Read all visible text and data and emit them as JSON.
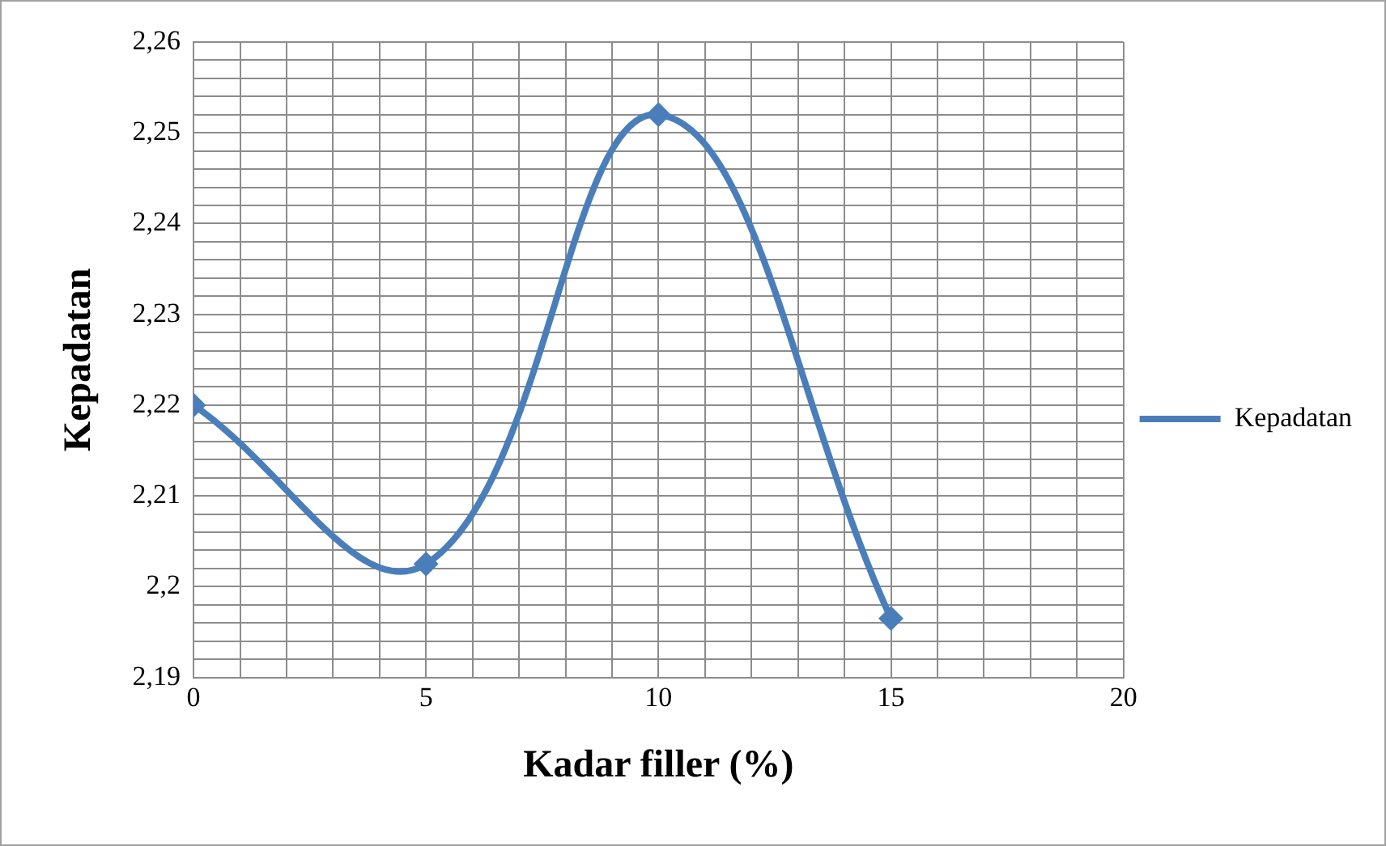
{
  "chart_data": {
    "type": "line",
    "xlabel": "Kadar filler (%)",
    "ylabel": "Kepadatan",
    "x": [
      0,
      5,
      10,
      15
    ],
    "series": [
      {
        "name": "Kepadatan",
        "color": "#4a7ebb",
        "values": [
          2.22,
          2.2025,
          2.252,
          2.1965
        ]
      }
    ],
    "xlim": [
      0,
      20
    ],
    "xticks": [
      0,
      {
        "value": 1,
        "label": null
      },
      {
        "value": 2,
        "label": null
      },
      {
        "value": 3,
        "label": null
      },
      {
        "value": 4,
        "label": null
      },
      5,
      {
        "value": 6,
        "label": null
      },
      {
        "value": 7,
        "label": null
      },
      {
        "value": 8,
        "label": null
      },
      {
        "value": 9,
        "label": null
      },
      10,
      {
        "value": 11,
        "label": null
      },
      {
        "value": 12,
        "label": null
      },
      {
        "value": 13,
        "label": null
      },
      {
        "value": 14,
        "label": null
      },
      15,
      {
        "value": 16,
        "label": null
      },
      {
        "value": 17,
        "label": null
      },
      {
        "value": 18,
        "label": null
      },
      {
        "value": 19,
        "label": null
      },
      20
    ],
    "ylim": [
      2.19,
      2.26
    ],
    "yticks": [
      {
        "value": 2.19,
        "label": "2,19"
      },
      {
        "value": 2.192,
        "label": null
      },
      {
        "value": 2.194,
        "label": null
      },
      {
        "value": 2.196,
        "label": null
      },
      {
        "value": 2.198,
        "label": null
      },
      {
        "value": 2.2,
        "label": "2,2"
      },
      {
        "value": 2.202,
        "label": null
      },
      {
        "value": 2.204,
        "label": null
      },
      {
        "value": 2.206,
        "label": null
      },
      {
        "value": 2.208,
        "label": null
      },
      {
        "value": 2.21,
        "label": "2,21"
      },
      {
        "value": 2.212,
        "label": null
      },
      {
        "value": 2.214,
        "label": null
      },
      {
        "value": 2.216,
        "label": null
      },
      {
        "value": 2.218,
        "label": null
      },
      {
        "value": 2.22,
        "label": "2,22"
      },
      {
        "value": 2.222,
        "label": null
      },
      {
        "value": 2.224,
        "label": null
      },
      {
        "value": 2.226,
        "label": null
      },
      {
        "value": 2.228,
        "label": null
      },
      {
        "value": 2.23,
        "label": "2,23"
      },
      {
        "value": 2.232,
        "label": null
      },
      {
        "value": 2.234,
        "label": null
      },
      {
        "value": 2.236,
        "label": null
      },
      {
        "value": 2.238,
        "label": null
      },
      {
        "value": 2.24,
        "label": "2,24"
      },
      {
        "value": 2.242,
        "label": null
      },
      {
        "value": 2.244,
        "label": null
      },
      {
        "value": 2.246,
        "label": null
      },
      {
        "value": 2.248,
        "label": null
      },
      {
        "value": 2.25,
        "label": "2,25"
      },
      {
        "value": 2.252,
        "label": null
      },
      {
        "value": 2.254,
        "label": null
      },
      {
        "value": 2.256,
        "label": null
      },
      {
        "value": 2.258,
        "label": null
      },
      {
        "value": 2.26,
        "label": "2,26"
      }
    ],
    "grid": true,
    "legend": "right",
    "marker": "diamond",
    "line_style": "solid"
  }
}
